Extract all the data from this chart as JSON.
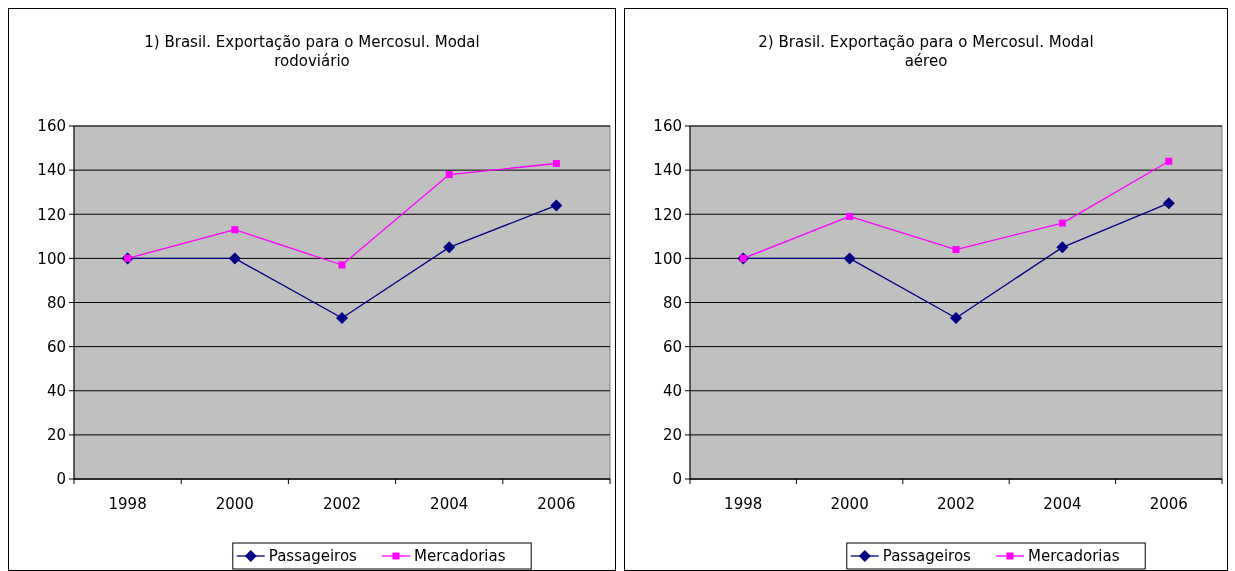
{
  "chart_data": [
    {
      "type": "line",
      "title": "1) Brasil. Exportação para o Mercosul. Modal rodoviário",
      "categories": [
        "1998",
        "2000",
        "2002",
        "2004",
        "2006"
      ],
      "series": [
        {
          "name": "Passageiros",
          "color": "#000080",
          "marker": "diamond",
          "values": [
            100,
            100,
            73,
            105,
            124
          ]
        },
        {
          "name": "Mercadorias",
          "color": "#ff00ff",
          "marker": "square",
          "values": [
            100,
            113,
            97,
            138,
            143
          ]
        }
      ],
      "ylim": [
        0,
        160
      ],
      "yticks": [
        0,
        20,
        40,
        60,
        80,
        100,
        120,
        140,
        160
      ],
      "grid": "y",
      "legend": "bottom"
    },
    {
      "type": "line",
      "title": "2) Brasil. Exportação para o Mercosul. Modal aéreo",
      "categories": [
        "1998",
        "2000",
        "2002",
        "2004",
        "2006"
      ],
      "series": [
        {
          "name": "Passageiros",
          "color": "#000080",
          "marker": "diamond",
          "values": [
            100,
            100,
            73,
            105,
            125
          ]
        },
        {
          "name": "Mercadorias",
          "color": "#ff00ff",
          "marker": "square",
          "values": [
            100,
            119,
            104,
            116,
            144
          ]
        }
      ],
      "ylim": [
        0,
        160
      ],
      "yticks": [
        0,
        20,
        40,
        60,
        80,
        100,
        120,
        140,
        160
      ],
      "grid": "y",
      "legend": "bottom"
    }
  ]
}
